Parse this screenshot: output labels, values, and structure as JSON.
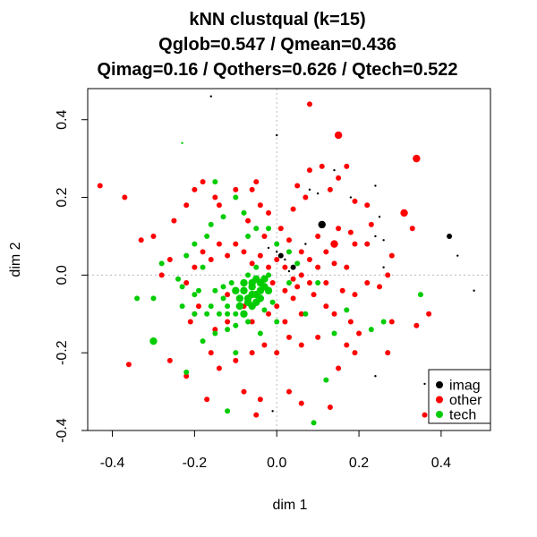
{
  "chart_data": {
    "type": "scatter",
    "title_lines": [
      "kNN clustqual (k=15)",
      "Qglob=0.547 / Qmean=0.436",
      "Qimag=0.16 / Qothers=0.626 / Qtech=0.522"
    ],
    "xlabel": "dim 1",
    "ylabel": "dim 2",
    "xlim": [
      -0.46,
      0.52
    ],
    "ylim": [
      -0.4,
      0.48
    ],
    "xticks": [
      -0.4,
      -0.2,
      0.0,
      0.2,
      0.4
    ],
    "yticks": [
      -0.4,
      -0.2,
      0.0,
      0.2,
      0.4
    ],
    "reference_lines": {
      "x": 0.0,
      "y": 0.0,
      "style": "dotted",
      "color": "#bbbbbb"
    },
    "legend": {
      "placement": "bottom-right"
    },
    "series": [
      {
        "name": "imag",
        "color": "#000000",
        "points": [
          [
            -0.16,
            0.46,
            1
          ],
          [
            0.0,
            0.36,
            1
          ],
          [
            0.08,
            0.22,
            1
          ],
          [
            0.1,
            0.21,
            1
          ],
          [
            0.11,
            0.13,
            3
          ],
          [
            0.14,
            0.27,
            1
          ],
          [
            0.18,
            0.2,
            1
          ],
          [
            0.24,
            0.23,
            1
          ],
          [
            0.25,
            0.15,
            1
          ],
          [
            0.26,
            0.09,
            1
          ],
          [
            0.24,
            0.1,
            1
          ],
          [
            0.28,
            0.05,
            1
          ],
          [
            0.26,
            0.02,
            1
          ],
          [
            0.42,
            0.1,
            2
          ],
          [
            0.44,
            0.05,
            1
          ],
          [
            0.48,
            -0.04,
            1
          ],
          [
            0.04,
            0.02,
            2
          ],
          [
            0.0,
            0.06,
            1
          ],
          [
            0.01,
            0.05,
            2
          ],
          [
            0.07,
            0.08,
            1
          ],
          [
            0.03,
            0.01,
            1
          ],
          [
            0.24,
            -0.26,
            1
          ],
          [
            -0.01,
            -0.35,
            1
          ],
          [
            0.36,
            -0.28,
            1
          ],
          [
            0.4,
            -0.29,
            1
          ],
          [
            0.02,
            0.04,
            1
          ],
          [
            -0.02,
            0.07,
            1
          ]
        ]
      },
      {
        "name": "other",
        "color": "#ff0000",
        "points": [
          [
            -0.43,
            0.23,
            2
          ],
          [
            -0.37,
            0.2,
            2
          ],
          [
            -0.33,
            0.09,
            2
          ],
          [
            -0.36,
            -0.23,
            2
          ],
          [
            -0.26,
            -0.22,
            2
          ],
          [
            -0.22,
            0.18,
            2
          ],
          [
            -0.2,
            0.22,
            2
          ],
          [
            -0.18,
            0.24,
            2
          ],
          [
            -0.15,
            0.2,
            2
          ],
          [
            -0.14,
            0.18,
            2
          ],
          [
            -0.1,
            0.22,
            2
          ],
          [
            -0.06,
            0.22,
            2
          ],
          [
            -0.05,
            0.24,
            2
          ],
          [
            -0.04,
            0.18,
            2
          ],
          [
            -0.02,
            0.16,
            2
          ],
          [
            0.04,
            0.17,
            2
          ],
          [
            0.07,
            0.2,
            2
          ],
          [
            0.05,
            0.23,
            2
          ],
          [
            0.08,
            0.27,
            2
          ],
          [
            0.11,
            0.28,
            2
          ],
          [
            0.13,
            0.22,
            2
          ],
          [
            0.15,
            0.25,
            2
          ],
          [
            0.17,
            0.28,
            2
          ],
          [
            0.19,
            0.19,
            2
          ],
          [
            0.22,
            0.18,
            2
          ],
          [
            0.08,
            0.44,
            2
          ],
          [
            0.15,
            0.36,
            3
          ],
          [
            0.34,
            0.3,
            3
          ],
          [
            0.31,
            0.16,
            3
          ],
          [
            0.33,
            0.12,
            2
          ],
          [
            0.28,
            0.05,
            2
          ],
          [
            0.22,
            0.08,
            2
          ],
          [
            0.18,
            0.11,
            2
          ],
          [
            0.15,
            0.12,
            2
          ],
          [
            0.14,
            0.08,
            3
          ],
          [
            0.12,
            0.06,
            2
          ],
          [
            0.1,
            0.02,
            2
          ],
          [
            0.08,
            -0.02,
            2
          ],
          [
            0.06,
            0.0,
            2
          ],
          [
            0.04,
            -0.01,
            2
          ],
          [
            0.02,
            0.02,
            2
          ],
          [
            0.0,
            0.04,
            2
          ],
          [
            -0.02,
            0.02,
            2
          ],
          [
            -0.04,
            0.05,
            2
          ],
          [
            -0.06,
            0.03,
            2
          ],
          [
            -0.08,
            0.06,
            2
          ],
          [
            -0.1,
            0.08,
            2
          ],
          [
            -0.12,
            0.05,
            2
          ],
          [
            -0.14,
            0.08,
            2
          ],
          [
            -0.16,
            0.04,
            2
          ],
          [
            -0.18,
            0.06,
            2
          ],
          [
            -0.2,
            0.02,
            2
          ],
          [
            -0.22,
            -0.02,
            2
          ],
          [
            -0.19,
            -0.08,
            2
          ],
          [
            -0.2,
            -0.1,
            2
          ],
          [
            -0.21,
            -0.12,
            2
          ],
          [
            -0.15,
            -0.14,
            2
          ],
          [
            -0.12,
            -0.12,
            2
          ],
          [
            -0.08,
            -0.08,
            2
          ],
          [
            -0.06,
            -0.12,
            2
          ],
          [
            -0.02,
            -0.1,
            2
          ],
          [
            0.0,
            -0.08,
            2
          ],
          [
            0.02,
            -0.12,
            2
          ],
          [
            0.04,
            -0.06,
            2
          ],
          [
            0.06,
            -0.1,
            2
          ],
          [
            0.09,
            -0.05,
            2
          ],
          [
            0.12,
            -0.08,
            2
          ],
          [
            0.16,
            -0.04,
            2
          ],
          [
            0.19,
            -0.05,
            2
          ],
          [
            0.22,
            -0.02,
            2
          ],
          [
            0.25,
            -0.03,
            2
          ],
          [
            0.27,
            0.0,
            2
          ],
          [
            0.2,
            -0.15,
            2
          ],
          [
            0.18,
            -0.12,
            2
          ],
          [
            0.14,
            -0.1,
            2
          ],
          [
            0.1,
            -0.16,
            2
          ],
          [
            0.06,
            -0.18,
            2
          ],
          [
            0.03,
            -0.16,
            2
          ],
          [
            0.0,
            -0.2,
            2
          ],
          [
            -0.03,
            -0.18,
            2
          ],
          [
            -0.06,
            -0.2,
            2
          ],
          [
            -0.1,
            -0.22,
            2
          ],
          [
            -0.14,
            -0.24,
            2
          ],
          [
            -0.16,
            -0.2,
            2
          ],
          [
            -0.22,
            -0.26,
            2
          ],
          [
            -0.17,
            -0.32,
            2
          ],
          [
            -0.08,
            -0.3,
            2
          ],
          [
            -0.04,
            -0.32,
            2
          ],
          [
            -0.05,
            -0.36,
            2
          ],
          [
            0.03,
            -0.3,
            2
          ],
          [
            0.06,
            -0.33,
            2
          ],
          [
            0.13,
            -0.34,
            2
          ],
          [
            0.15,
            -0.24,
            2
          ],
          [
            0.19,
            -0.2,
            2
          ],
          [
            0.17,
            -0.18,
            2
          ],
          [
            0.28,
            -0.12,
            2
          ],
          [
            0.27,
            -0.2,
            2
          ],
          [
            0.37,
            -0.1,
            2
          ],
          [
            0.34,
            -0.13,
            2
          ],
          [
            0.36,
            -0.36,
            2
          ],
          [
            -0.26,
            0.04,
            2
          ],
          [
            -0.28,
            0.0,
            2
          ],
          [
            -0.3,
            0.1,
            2
          ],
          [
            -0.25,
            0.14,
            2
          ],
          [
            0.01,
            0.12,
            2
          ],
          [
            0.03,
            0.09,
            2
          ],
          [
            -0.03,
            0.1,
            2
          ],
          [
            0.06,
            0.06,
            2
          ],
          [
            0.08,
            0.04,
            2
          ],
          [
            0.1,
            0.1,
            2
          ],
          [
            -0.07,
            0.14,
            2
          ],
          [
            0.02,
            -0.04,
            2
          ],
          [
            0.05,
            -0.03,
            2
          ],
          [
            -0.01,
            -0.02,
            2
          ],
          [
            0.12,
            -0.02,
            2
          ],
          [
            0.14,
            0.03,
            2
          ],
          [
            0.17,
            0.02,
            2
          ],
          [
            0.19,
            0.08,
            2
          ],
          [
            0.23,
            0.13,
            2
          ],
          [
            -0.12,
            -0.05,
            2
          ]
        ]
      },
      {
        "name": "tech",
        "color": "#00cc00",
        "points": [
          [
            -0.06,
            -0.03,
            3
          ],
          [
            -0.05,
            -0.05,
            3
          ],
          [
            -0.04,
            -0.04,
            3
          ],
          [
            -0.07,
            -0.06,
            3
          ],
          [
            -0.06,
            -0.02,
            3
          ],
          [
            -0.05,
            -0.01,
            3
          ],
          [
            -0.03,
            -0.03,
            3
          ],
          [
            -0.08,
            -0.04,
            3
          ],
          [
            -0.09,
            -0.06,
            3
          ],
          [
            -0.07,
            -0.07,
            3
          ],
          [
            -0.04,
            -0.06,
            3
          ],
          [
            -0.06,
            -0.08,
            3
          ],
          [
            -0.08,
            -0.02,
            3
          ],
          [
            -0.02,
            -0.04,
            3
          ],
          [
            -0.03,
            -0.01,
            3
          ],
          [
            -0.05,
            -0.07,
            3
          ],
          [
            -0.04,
            -0.02,
            3
          ],
          [
            -0.06,
            -0.05,
            3
          ],
          [
            -0.1,
            -0.04,
            3
          ],
          [
            -0.09,
            -0.08,
            3
          ],
          [
            -0.02,
            0.0,
            2
          ],
          [
            -0.07,
            0.0,
            2
          ],
          [
            -0.05,
            0.02,
            2
          ],
          [
            -0.08,
            -0.1,
            3
          ],
          [
            -0.1,
            -0.1,
            2
          ],
          [
            -0.12,
            -0.08,
            2
          ],
          [
            -0.13,
            -0.03,
            2
          ],
          [
            -0.11,
            -0.02,
            2
          ],
          [
            -0.15,
            -0.04,
            2
          ],
          [
            -0.13,
            -0.06,
            2
          ],
          [
            -0.03,
            -0.09,
            2
          ],
          [
            -0.01,
            -0.07,
            2
          ],
          [
            -0.12,
            -0.1,
            2
          ],
          [
            -0.14,
            -0.1,
            2
          ],
          [
            -0.07,
            -0.12,
            2
          ],
          [
            -0.1,
            -0.13,
            2
          ],
          [
            -0.16,
            -0.08,
            2
          ],
          [
            -0.17,
            -0.1,
            2
          ],
          [
            -0.2,
            -0.05,
            2
          ],
          [
            -0.19,
            -0.04,
            2
          ],
          [
            -0.18,
            0.02,
            2
          ],
          [
            -0.22,
            0.05,
            2
          ],
          [
            -0.24,
            -0.01,
            2
          ],
          [
            -0.23,
            -0.03,
            2
          ],
          [
            -0.2,
            -0.1,
            2
          ],
          [
            -0.23,
            -0.08,
            2
          ],
          [
            -0.3,
            -0.06,
            2
          ],
          [
            -0.3,
            -0.17,
            3
          ],
          [
            -0.22,
            -0.25,
            2
          ],
          [
            -0.12,
            -0.35,
            2
          ],
          [
            -0.18,
            -0.17,
            2
          ],
          [
            -0.15,
            -0.15,
            2
          ],
          [
            -0.12,
            -0.14,
            2
          ],
          [
            -0.1,
            -0.2,
            2
          ],
          [
            -0.04,
            -0.15,
            2
          ],
          [
            0.0,
            -0.12,
            2
          ],
          [
            0.03,
            -0.02,
            2
          ],
          [
            0.05,
            0.03,
            2
          ],
          [
            0.07,
            -0.1,
            2
          ],
          [
            0.1,
            -0.02,
            2
          ],
          [
            0.17,
            -0.09,
            2
          ],
          [
            0.14,
            -0.15,
            2
          ],
          [
            0.23,
            -0.14,
            2
          ],
          [
            0.26,
            -0.12,
            2
          ],
          [
            0.35,
            -0.05,
            2
          ],
          [
            0.12,
            -0.27,
            2
          ],
          [
            0.09,
            -0.38,
            2
          ],
          [
            -0.23,
            0.34,
            1
          ],
          [
            -0.17,
            0.1,
            2
          ],
          [
            -0.16,
            0.13,
            2
          ],
          [
            -0.15,
            0.24,
            2
          ],
          [
            -0.13,
            0.15,
            2
          ],
          [
            -0.1,
            0.2,
            2
          ],
          [
            -0.08,
            0.16,
            2
          ],
          [
            -0.07,
            0.1,
            2
          ],
          [
            -0.05,
            0.12,
            2
          ],
          [
            -0.02,
            0.12,
            2
          ],
          [
            0.0,
            0.08,
            2
          ],
          [
            0.03,
            0.06,
            2
          ],
          [
            -0.28,
            0.03,
            2
          ],
          [
            -0.34,
            -0.06,
            2
          ],
          [
            -0.2,
            0.08,
            2
          ]
        ]
      }
    ]
  }
}
